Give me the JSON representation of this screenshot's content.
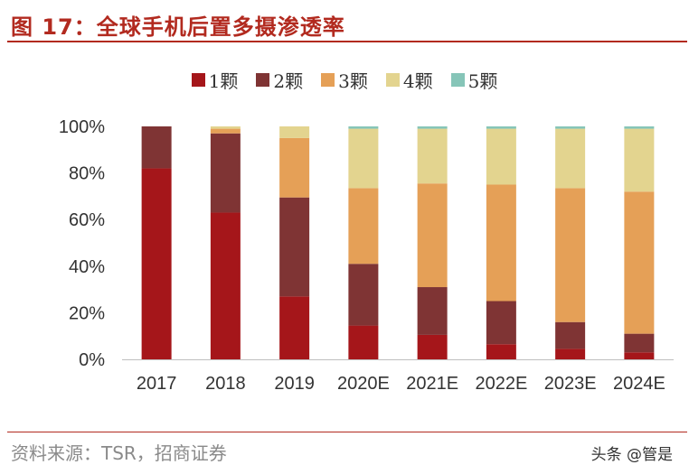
{
  "header": {
    "title": "图 17：全球手机后置多摄渗透率"
  },
  "footer": {
    "source": "资料来源：TSR，招商证券",
    "watermark": "头条 @管是"
  },
  "colors": {
    "accent": "#b22a1f",
    "series": [
      "#a5161a",
      "#7f3434",
      "#e5a057",
      "#e3d48f",
      "#86c5b8"
    ]
  },
  "chart_data": {
    "type": "bar",
    "stacked": true,
    "title": "全球手机后置多摄渗透率",
    "xlabel": "",
    "ylabel": "",
    "ylim": [
      0,
      100
    ],
    "yticks": [
      "0%",
      "20%",
      "40%",
      "60%",
      "80%",
      "100%"
    ],
    "categories": [
      "2017",
      "2018",
      "2019",
      "2020E",
      "2021E",
      "2022E",
      "2023E",
      "2024E"
    ],
    "legend_position": "top-center",
    "series": [
      {
        "name": "1颗",
        "values": [
          82,
          63,
          27,
          14.5,
          10.5,
          6.5,
          4.5,
          3
        ]
      },
      {
        "name": "2颗",
        "values": [
          18,
          34,
          42.5,
          26.5,
          20.5,
          18.5,
          11.5,
          8
        ]
      },
      {
        "name": "3颗",
        "values": [
          0,
          2,
          25.5,
          32.5,
          44.5,
          50,
          57.5,
          61
        ]
      },
      {
        "name": "4颗",
        "values": [
          0,
          1,
          5,
          25.5,
          23.5,
          24,
          25.5,
          27
        ]
      },
      {
        "name": "5颗",
        "values": [
          0,
          0,
          0,
          1,
          1,
          1,
          1,
          1
        ]
      }
    ]
  }
}
